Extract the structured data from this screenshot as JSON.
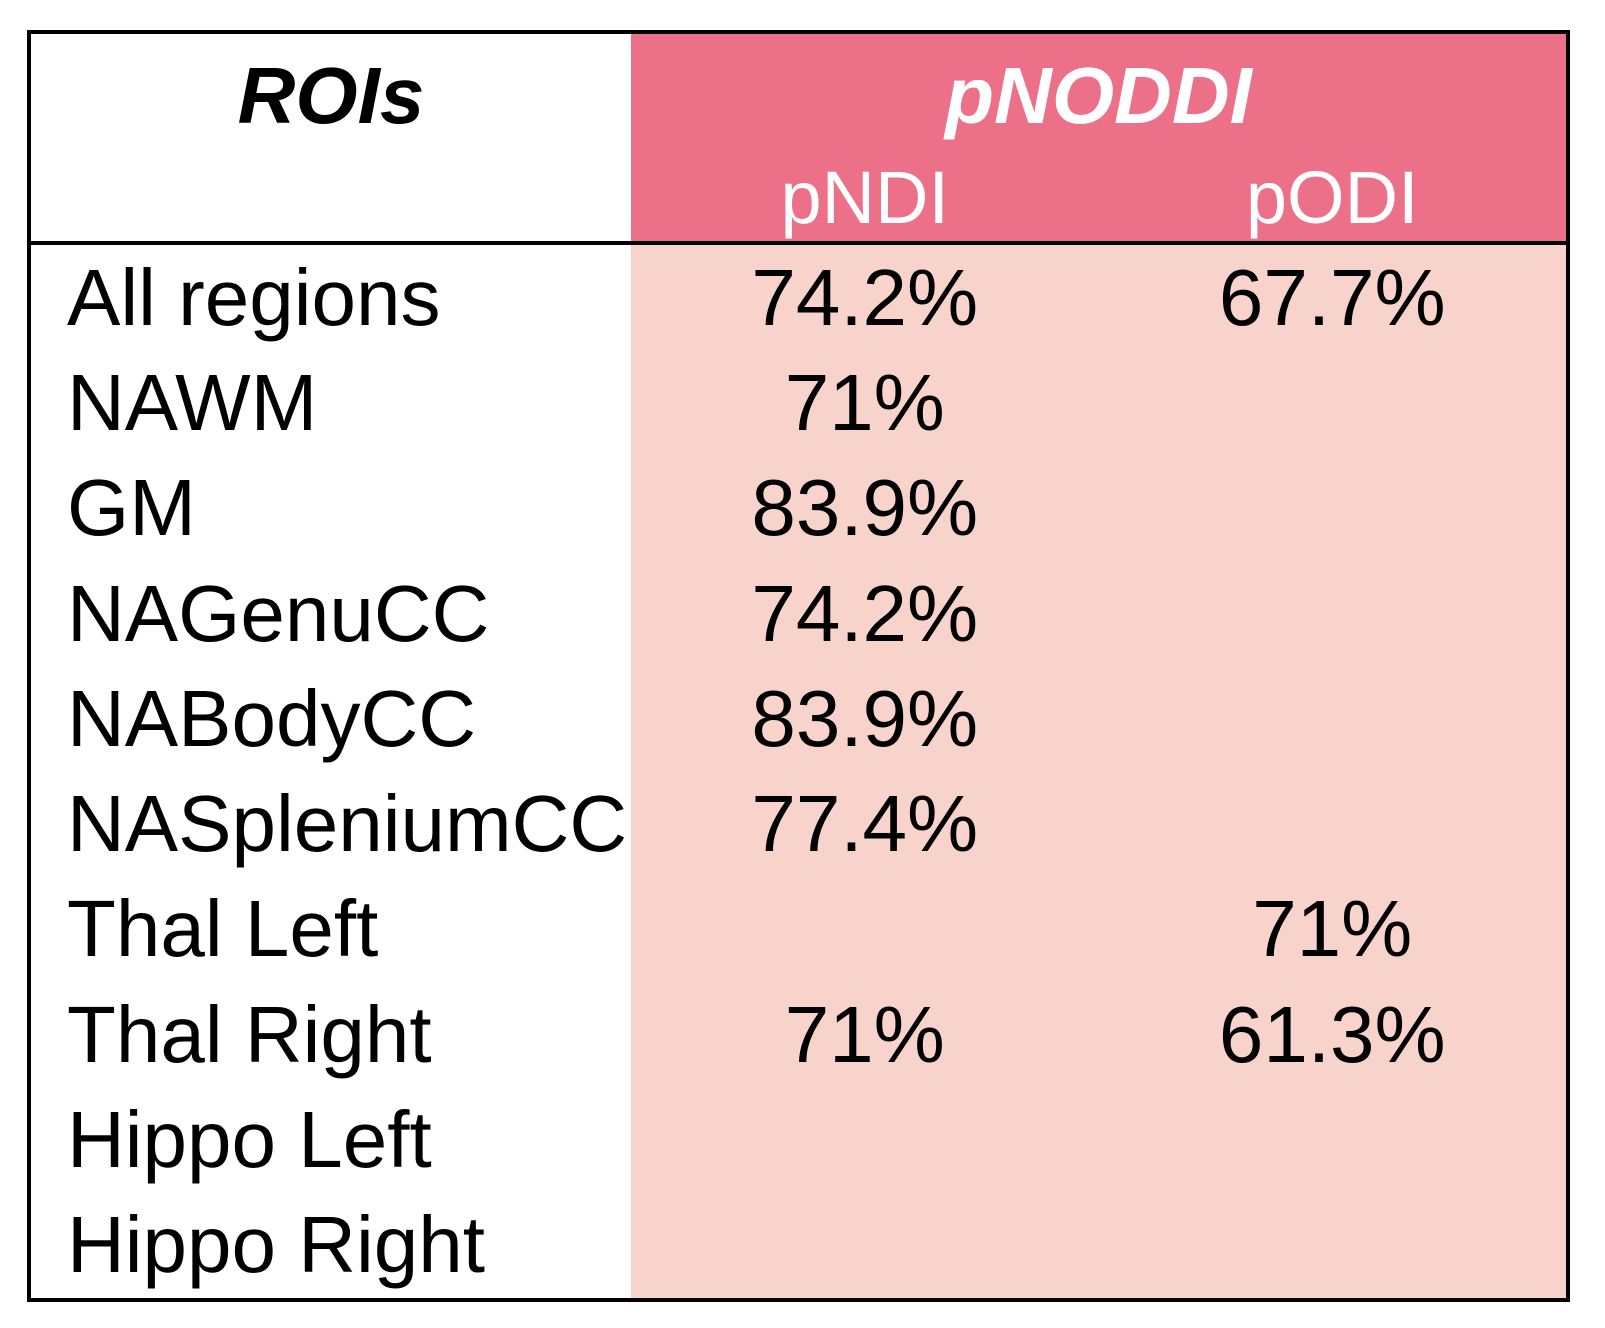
{
  "table": {
    "header": {
      "rois_label": "ROIs",
      "group_label": "pNODDI",
      "sub_col_1": "pNDI",
      "sub_col_2": "pODI"
    },
    "rows": [
      {
        "roi": "All regions",
        "pndi": "74.2%",
        "podi": "67.7%"
      },
      {
        "roi": "NAWM",
        "pndi": "71%",
        "podi": ""
      },
      {
        "roi": "GM",
        "pndi": "83.9%",
        "podi": ""
      },
      {
        "roi": "NAGenuCC",
        "pndi": "74.2%",
        "podi": ""
      },
      {
        "roi": "NABodyCC",
        "pndi": "83.9%",
        "podi": ""
      },
      {
        "roi": "NASpleniumCC",
        "pndi": "77.4%",
        "podi": ""
      },
      {
        "roi": "Thal Left",
        "pndi": "",
        "podi": "71%"
      },
      {
        "roi": "Thal Right",
        "pndi": "71%",
        "podi": "61.3%"
      },
      {
        "roi": "Hippo Left",
        "pndi": "",
        "podi": ""
      },
      {
        "roi": "Hippo Right",
        "pndi": "",
        "podi": ""
      }
    ],
    "colors": {
      "header_pink": "#ED7089",
      "body_pink": "#F8D3CB",
      "border": "#000000",
      "header_text": "#FFFFFF",
      "body_text": "#000000"
    }
  }
}
